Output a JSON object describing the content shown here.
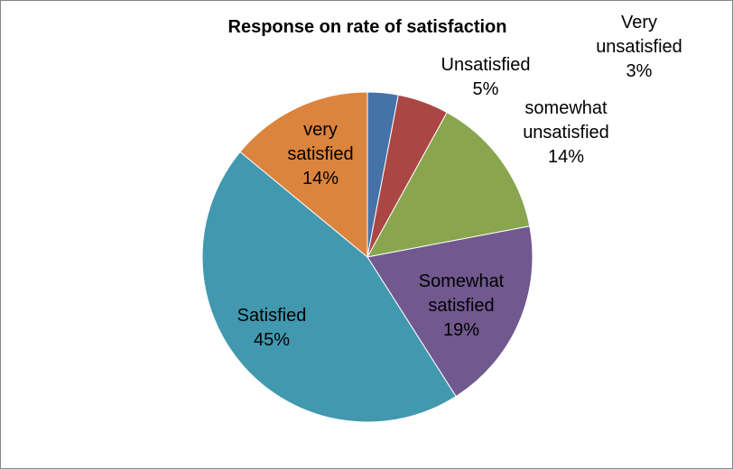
{
  "chart_data": {
    "type": "pie",
    "title": "Response on rate of satisfaction",
    "start_angle": "top",
    "direction": "clockwise",
    "slices": [
      {
        "label": "Very unsatisfied",
        "label_lines": [
          "Very",
          "unsatisfied"
        ],
        "value": 3,
        "pct_label": "3%",
        "color": "#4572A7"
      },
      {
        "label": "Unsatisfied",
        "label_lines": [
          "Unsatisfied"
        ],
        "value": 5,
        "pct_label": "5%",
        "color": "#AA4643"
      },
      {
        "label": "somewhat unsatisfied",
        "label_lines": [
          "somewhat",
          "unsatisfied"
        ],
        "value": 14,
        "pct_label": "14%",
        "color": "#89A54E"
      },
      {
        "label": "Somewhat satisfied",
        "label_lines": [
          "Somewhat",
          "satisfied"
        ],
        "value": 19,
        "pct_label": "19%",
        "color": "#71588F"
      },
      {
        "label": "Satisfied",
        "label_lines": [
          "Satisfied"
        ],
        "value": 45,
        "pct_label": "45%",
        "color": "#4198AF"
      },
      {
        "label": "very satisfied",
        "label_lines": [
          "very",
          "satisfied"
        ],
        "value": 14,
        "pct_label": "14%",
        "color": "#DB843D"
      }
    ]
  }
}
